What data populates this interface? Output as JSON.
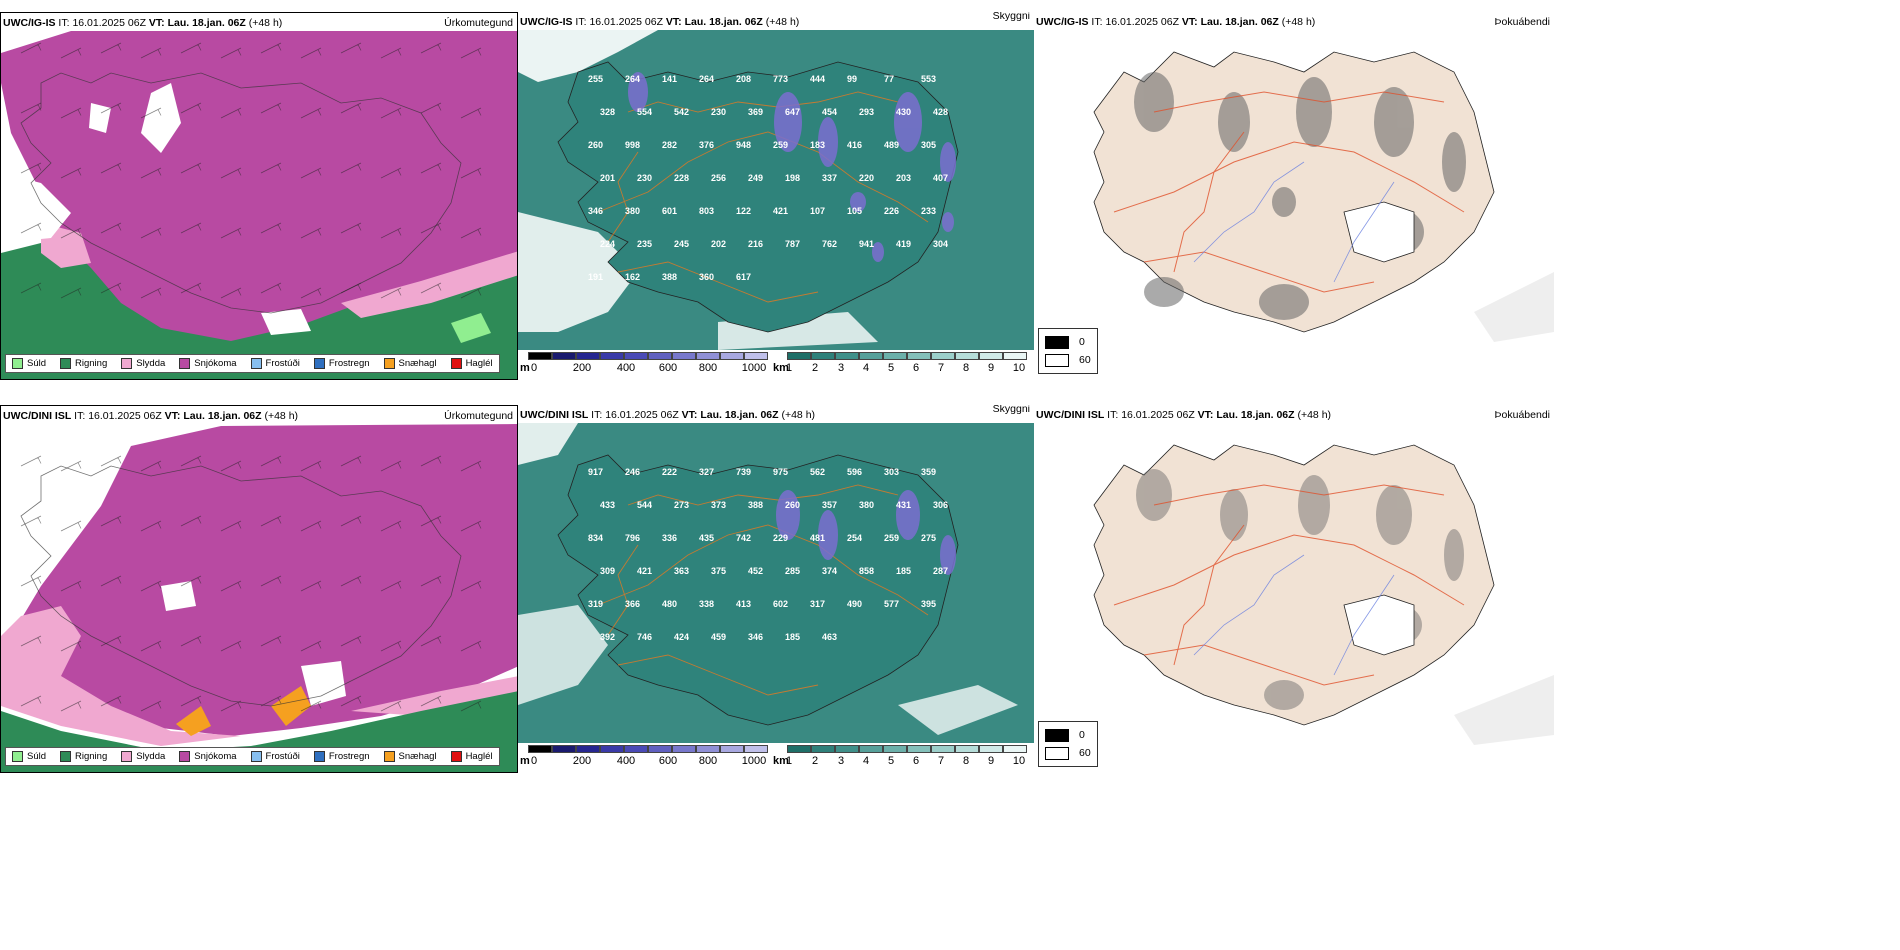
{
  "panels": {
    "top_left": {
      "model": "UWC/IG-IS",
      "it_label": "IT:",
      "it_value": "16.01.2025 06Z",
      "vt_label": "VT:",
      "vt_value": "Lau. 18.jan. 06Z",
      "lead": "(+48 h)",
      "product": "Úrkomutegund"
    },
    "top_mid": {
      "model": "UWC/IG-IS",
      "it_label": "IT:",
      "it_value": "16.01.2025 06Z",
      "vt_label": "VT:",
      "vt_value": "Lau. 18.jan. 06Z",
      "lead": "(+48 h)",
      "product": "Skyggni"
    },
    "top_right": {
      "model": "UWC/IG-IS",
      "it_label": "IT:",
      "it_value": "16.01.2025 06Z",
      "vt_label": "VT:",
      "vt_value": "Lau. 18.jan. 06Z",
      "lead": "(+48 h)",
      "product": "Þokuábendi"
    },
    "bot_left": {
      "model": "UWC/DINI ISL",
      "it_label": "IT:",
      "it_value": "16.01.2025 06Z",
      "vt_label": "VT:",
      "vt_value": "Lau. 18.jan. 06Z",
      "lead": "(+48 h)",
      "product": "Úrkomutegund"
    },
    "bot_mid": {
      "model": "UWC/DINI ISL",
      "it_label": "IT:",
      "it_value": "16.01.2025 06Z",
      "vt_label": "VT:",
      "vt_value": "Lau. 18.jan. 06Z",
      "lead": "(+48 h)",
      "product": "Skyggni"
    },
    "bot_right": {
      "model": "UWC/DINI ISL",
      "it_label": "IT:",
      "it_value": "16.01.2025 06Z",
      "vt_label": "VT:",
      "vt_value": "Lau. 18.jan. 06Z",
      "lead": "(+48 h)",
      "product": "Þokuábendi"
    }
  },
  "precip_legend": [
    {
      "label": "Súld",
      "color": "#90ee90"
    },
    {
      "label": "Rigning",
      "color": "#2e8b57"
    },
    {
      "label": "Slydda",
      "color": "#f0a8d0"
    },
    {
      "label": "Snjókoma",
      "color": "#b84aa2"
    },
    {
      "label": "Frostúði",
      "color": "#87bff0"
    },
    {
      "label": "Frostregn",
      "color": "#2f6fbf"
    },
    {
      "label": "Snæhagl",
      "color": "#f5a020"
    },
    {
      "label": "Haglél",
      "color": "#e01010"
    }
  ],
  "elev_bar": {
    "unit": "m",
    "ticks": [
      "0",
      "200",
      "400",
      "600",
      "800",
      "1000"
    ]
  },
  "vis_bar": {
    "unit": "km",
    "ticks": [
      "1",
      "2",
      "3",
      "4",
      "5",
      "6",
      "7",
      "8",
      "9",
      "10"
    ]
  },
  "fog_legend": [
    {
      "value": "0",
      "color": "#000000"
    },
    {
      "value": "60",
      "color": "#ffffff"
    }
  ],
  "labels_top": [
    "255",
    "264",
    "141",
    "264",
    "208",
    "773",
    "444",
    "99",
    "77",
    "553",
    "328",
    "554",
    "542",
    "230",
    "369",
    "647",
    "454",
    "293",
    "430",
    "428",
    "260",
    "998",
    "282",
    "376",
    "948",
    "259",
    "183",
    "416",
    "489",
    "305",
    "201",
    "230",
    "228",
    "256",
    "249",
    "198",
    "337",
    "220",
    "203",
    "407",
    "346",
    "380",
    "601",
    "803",
    "122",
    "421",
    "107",
    "105",
    "226",
    "233",
    "224",
    "235",
    "245",
    "202",
    "216",
    "787",
    "762",
    "941",
    "419",
    "304",
    "191",
    "162",
    "388",
    "360",
    "617"
  ],
  "labels_bot": [
    "917",
    "246",
    "222",
    "327",
    "739",
    "975",
    "562",
    "596",
    "303",
    "359",
    "433",
    "544",
    "273",
    "373",
    "388",
    "260",
    "357",
    "380",
    "431",
    "306",
    "834",
    "796",
    "336",
    "435",
    "742",
    "229",
    "481",
    "254",
    "259",
    "275",
    "309",
    "421",
    "363",
    "375",
    "452",
    "285",
    "374",
    "858",
    "185",
    "287",
    "319",
    "366",
    "480",
    "338",
    "413",
    "602",
    "317",
    "490",
    "577",
    "395",
    "392",
    "746",
    "424",
    "459",
    "346",
    "185",
    "463"
  ]
}
